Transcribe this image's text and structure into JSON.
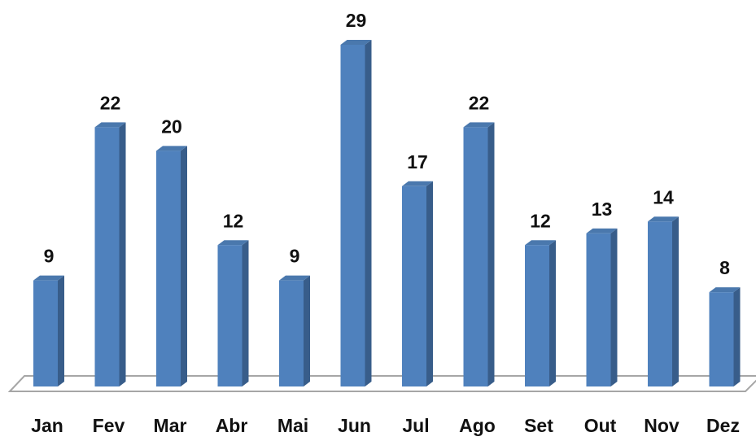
{
  "chart_data": {
    "type": "bar3d",
    "categories": [
      "Jan",
      "Fev",
      "Mar",
      "Abr",
      "Mai",
      "Jun",
      "Jul",
      "Ago",
      "Set",
      "Out",
      "Nov",
      "Dez"
    ],
    "values": [
      9,
      22,
      20,
      12,
      9,
      29,
      17,
      22,
      12,
      13,
      14,
      8
    ],
    "color": "#4f81bd"
  }
}
